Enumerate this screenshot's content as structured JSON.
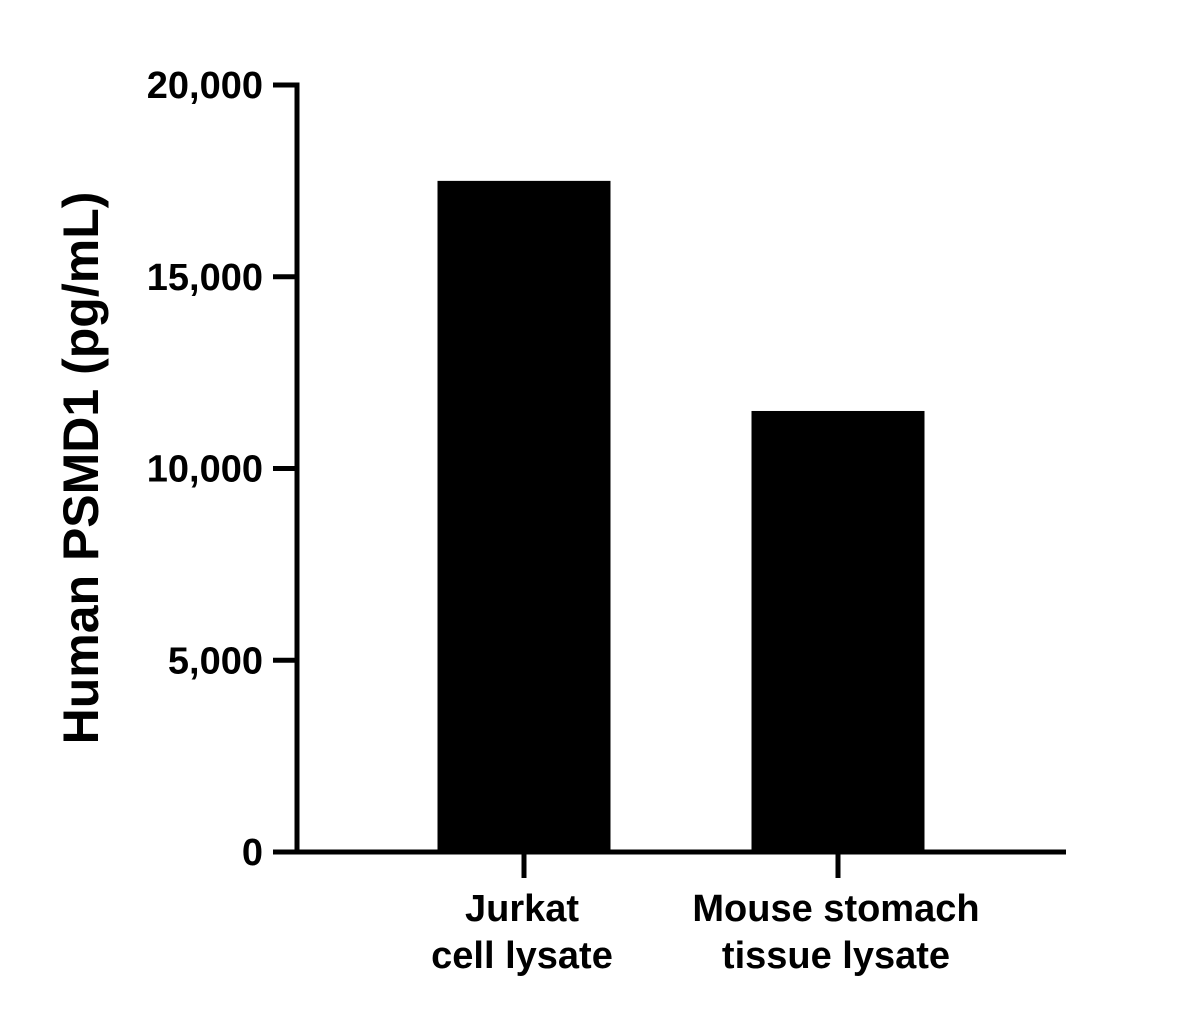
{
  "chart_data": {
    "type": "bar",
    "title": "",
    "xlabel": "",
    "ylabel": "Human PSMD1 (pg/mL)",
    "categories": [
      [
        "Jurkat",
        "cell lysate"
      ],
      [
        "Mouse stomach",
        "tissue lysate"
      ]
    ],
    "values": [
      17500,
      11500
    ],
    "ylim": [
      0,
      20000
    ],
    "yticks": [
      0,
      5000,
      10000,
      15000,
      20000
    ],
    "ytick_labels": [
      "0",
      "5,000",
      "10,000",
      "15,000",
      "20,000"
    ],
    "grid": false,
    "legend": "none",
    "bar_color": "#000000",
    "axis_color": "#000000"
  }
}
